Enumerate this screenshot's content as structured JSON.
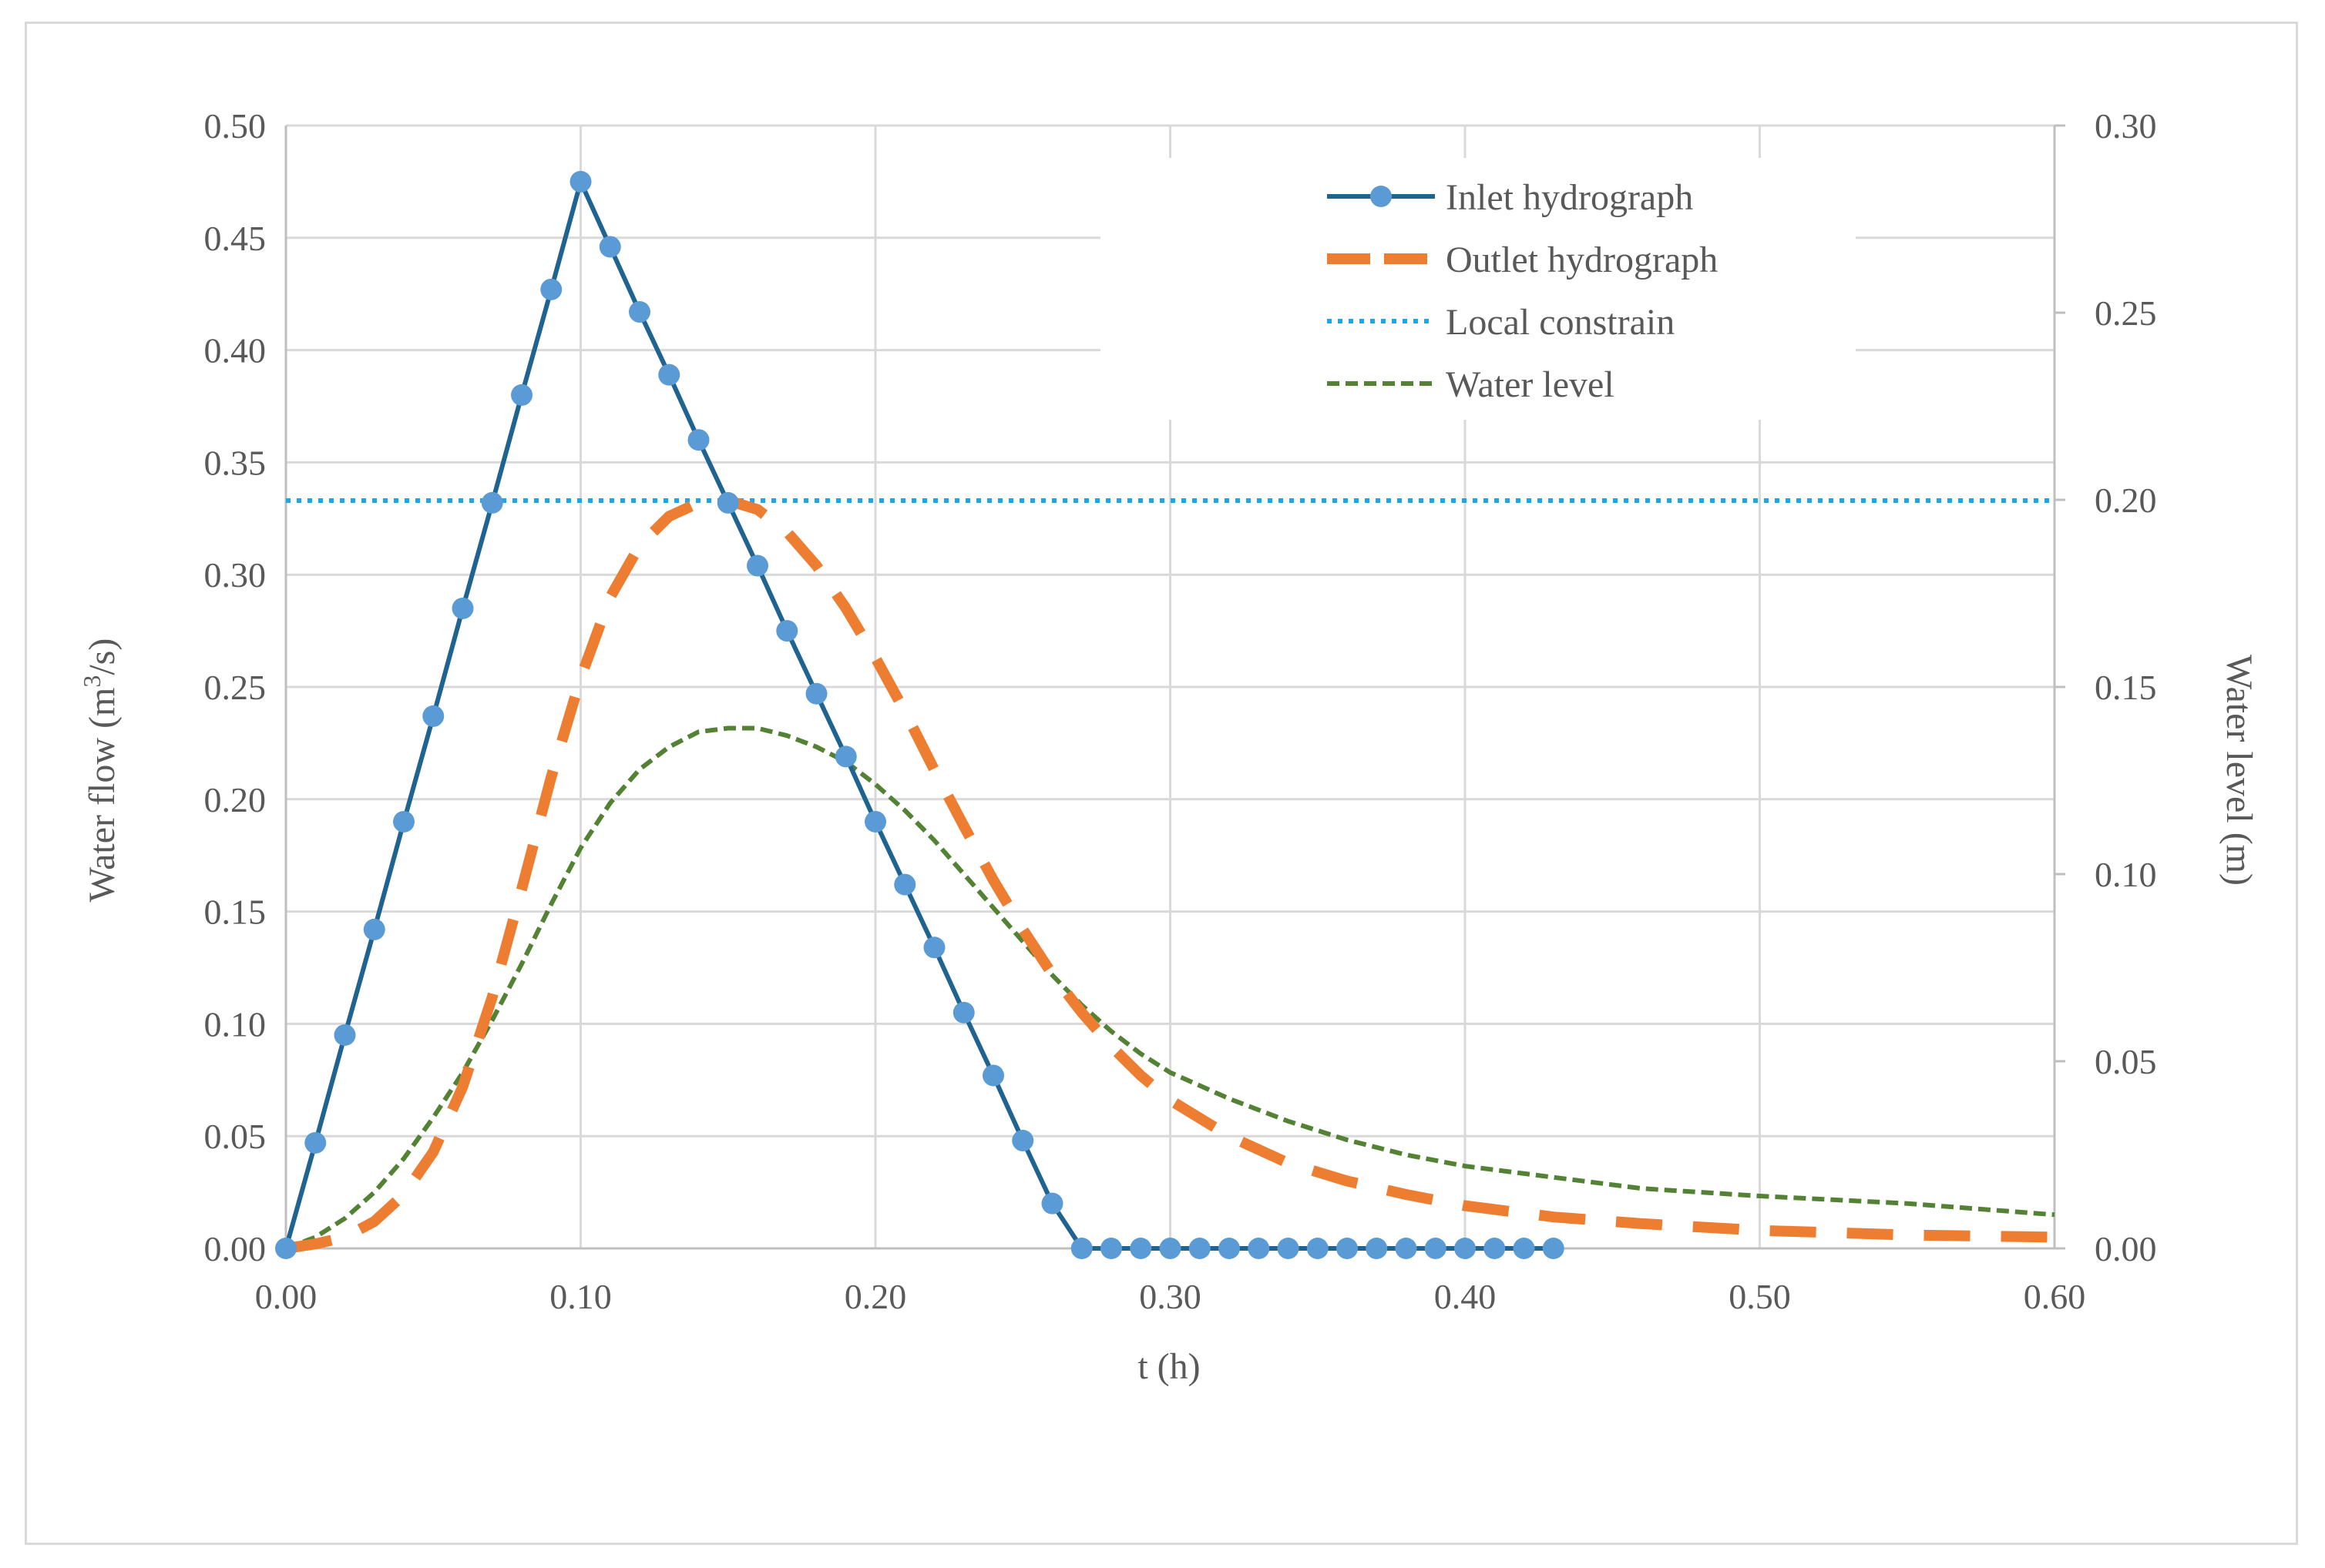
{
  "chart_data": {
    "type": "line",
    "xlabel": "t (h)",
    "ylabel": {
      "pre": "Water flow  (m",
      "sup": "3",
      "post": "/s)"
    },
    "y2label": "Water level (m)",
    "xlim": [
      0,
      0.6
    ],
    "ylim": [
      0,
      0.5
    ],
    "y2lim": [
      0,
      0.3
    ],
    "grid": true,
    "legend_position": "top-right",
    "x_ticks": [
      "0.00",
      "0.10",
      "0.20",
      "0.30",
      "0.40",
      "0.50",
      "0.60"
    ],
    "y_ticks": [
      "0.00",
      "0.05",
      "0.10",
      "0.15",
      "0.20",
      "0.25",
      "0.30",
      "0.35",
      "0.40",
      "0.45",
      "0.50"
    ],
    "y2_ticks": [
      "0.00",
      "0.05",
      "0.10",
      "0.15",
      "0.20",
      "0.25",
      "0.30"
    ],
    "series": [
      {
        "name": "Inlet hydrograph",
        "axis": "left",
        "style": "solid-markers",
        "color": "#1f6391",
        "marker_color": "#5b9bd5",
        "x": [
          0.0,
          0.01,
          0.02,
          0.03,
          0.04,
          0.05,
          0.06,
          0.07,
          0.08,
          0.09,
          0.1,
          0.11,
          0.12,
          0.13,
          0.14,
          0.15,
          0.16,
          0.17,
          0.18,
          0.19,
          0.2,
          0.21,
          0.22,
          0.23,
          0.24,
          0.25,
          0.26,
          0.27,
          0.28,
          0.29,
          0.3,
          0.31,
          0.32,
          0.33,
          0.34,
          0.35,
          0.36,
          0.37,
          0.38,
          0.39,
          0.4,
          0.41,
          0.42,
          0.43
        ],
        "y": [
          0.0,
          0.047,
          0.095,
          0.142,
          0.19,
          0.237,
          0.285,
          0.332,
          0.38,
          0.427,
          0.475,
          0.446,
          0.417,
          0.389,
          0.36,
          0.332,
          0.304,
          0.275,
          0.247,
          0.219,
          0.19,
          0.162,
          0.134,
          0.105,
          0.077,
          0.048,
          0.02,
          0,
          0,
          0,
          0,
          0,
          0,
          0,
          0,
          0,
          0,
          0,
          0,
          0,
          0,
          0,
          0,
          0
        ]
      },
      {
        "name": "Outlet hydrograph",
        "axis": "left",
        "style": "long-dash",
        "color": "#ed7d31",
        "x": [
          0.0,
          0.01,
          0.02,
          0.03,
          0.04,
          0.05,
          0.06,
          0.07,
          0.08,
          0.09,
          0.1,
          0.11,
          0.12,
          0.13,
          0.14,
          0.15,
          0.16,
          0.17,
          0.18,
          0.19,
          0.2,
          0.21,
          0.22,
          0.23,
          0.24,
          0.25,
          0.26,
          0.27,
          0.28,
          0.29,
          0.3,
          0.32,
          0.34,
          0.36,
          0.38,
          0.4,
          0.43,
          0.46,
          0.5,
          0.55,
          0.6
        ],
        "y": [
          0.0,
          0.002,
          0.005,
          0.012,
          0.024,
          0.043,
          0.072,
          0.112,
          0.16,
          0.21,
          0.254,
          0.29,
          0.313,
          0.326,
          0.332,
          0.333,
          0.329,
          0.319,
          0.304,
          0.285,
          0.263,
          0.239,
          0.213,
          0.188,
          0.164,
          0.142,
          0.122,
          0.105,
          0.09,
          0.077,
          0.066,
          0.05,
          0.038,
          0.03,
          0.024,
          0.019,
          0.014,
          0.011,
          0.008,
          0.006,
          0.005
        ]
      },
      {
        "name": "Local constrain",
        "axis": "left",
        "style": "dotted",
        "color": "#1aa7ec",
        "x": [
          0.0,
          0.6
        ],
        "y": [
          0.333,
          0.333
        ]
      },
      {
        "name": "Water level",
        "axis": "right",
        "style": "short-dash",
        "color": "#548235",
        "x": [
          0.0,
          0.01,
          0.02,
          0.03,
          0.04,
          0.05,
          0.06,
          0.07,
          0.08,
          0.09,
          0.1,
          0.11,
          0.12,
          0.13,
          0.14,
          0.15,
          0.16,
          0.17,
          0.18,
          0.19,
          0.2,
          0.21,
          0.22,
          0.23,
          0.24,
          0.25,
          0.26,
          0.27,
          0.28,
          0.29,
          0.3,
          0.32,
          0.34,
          0.36,
          0.38,
          0.4,
          0.43,
          0.46,
          0.5,
          0.55,
          0.6
        ],
        "y": [
          0.0,
          0.003,
          0.008,
          0.015,
          0.024,
          0.035,
          0.047,
          0.061,
          0.076,
          0.092,
          0.107,
          0.119,
          0.128,
          0.134,
          0.138,
          0.139,
          0.139,
          0.137,
          0.134,
          0.13,
          0.124,
          0.117,
          0.109,
          0.1,
          0.091,
          0.082,
          0.073,
          0.065,
          0.058,
          0.052,
          0.047,
          0.04,
          0.034,
          0.029,
          0.025,
          0.022,
          0.019,
          0.016,
          0.014,
          0.012,
          0.009
        ]
      }
    ]
  }
}
